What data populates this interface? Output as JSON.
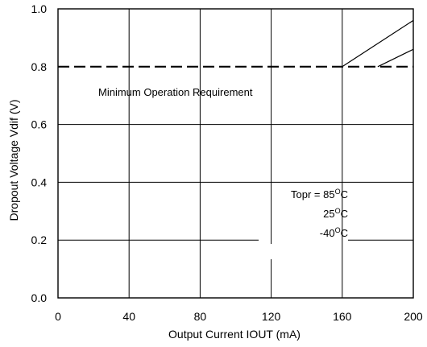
{
  "chart_data": {
    "type": "line",
    "title": "",
    "xlabel": "Output Current IOUT (mA)",
    "ylabel": "Dropout Voltage Vdif (V)",
    "xlim": [
      0,
      200
    ],
    "ylim": [
      0.0,
      1.0
    ],
    "xticks": [
      0,
      40,
      80,
      120,
      160,
      200
    ],
    "yticks": [
      0.0,
      0.2,
      0.4,
      0.6,
      0.8,
      1.0
    ],
    "xtick_labels": [
      "0",
      "40",
      "80",
      "120",
      "160",
      "200"
    ],
    "ytick_labels": [
      "0.0",
      "0.2",
      "0.4",
      "0.6",
      "0.8",
      "1.0"
    ],
    "grid": true,
    "series": [
      {
        "id": "topr-85",
        "style": "solid",
        "x": [
          160,
          200
        ],
        "y": [
          0.8,
          0.96
        ]
      },
      {
        "id": "topr-25",
        "style": "solid",
        "x": [
          180,
          200
        ],
        "y": [
          0.8,
          0.86
        ]
      },
      {
        "id": "min-operation-requirement",
        "style": "dashed",
        "x": [
          0,
          200
        ],
        "y": [
          0.8,
          0.8
        ]
      }
    ],
    "annotations": {
      "min_requirement": "Minimum Operation Requirement",
      "topr_prefix": "Topr = ",
      "t85_value": "85",
      "t25_value": "25",
      "tm40_value": "-40",
      "degree_symbol": "O",
      "unit": "C"
    }
  }
}
